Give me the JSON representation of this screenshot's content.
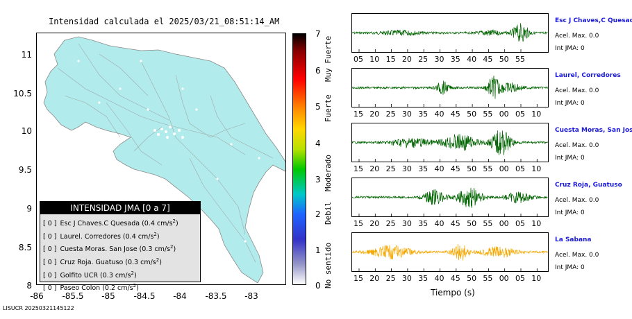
{
  "map": {
    "title": "Intensidad calculada el 2025/03/21_08:51:14_AM",
    "yticks": [
      "11",
      "10.5",
      "10",
      "9.5",
      "9",
      "8.5",
      "8"
    ],
    "xticks": [
      "-86",
      "-85.5",
      "-85",
      "-84.5",
      "-84",
      "-83.5",
      "-83"
    ],
    "xlim": [
      -86,
      -82.5
    ],
    "ylim": [
      8,
      11.3
    ],
    "land_color": "#b2ebeb"
  },
  "legend": {
    "title": "INTENSIDAD JMA [0 a 7]",
    "items": [
      {
        "prefix": "[ 0 ]",
        "text": "Esc J Chaves.C Quesada (0.4 cm/s",
        "sup": "2",
        "close": ")"
      },
      {
        "prefix": "[ 0 ]",
        "text": "Laurel. Corredores (0.4 cm/s",
        "sup": "2",
        "close": ")"
      },
      {
        "prefix": "[ 0 ]",
        "text": "Cuesta Moras. San Jose (0.3 cm/s",
        "sup": "2",
        "close": ")"
      },
      {
        "prefix": "[ 0 ]",
        "text": "Cruz Roja. Guatuso (0.3 cm/s",
        "sup": "2",
        "close": ")"
      },
      {
        "prefix": "[ 0 ]",
        "text": "Golfito UCR (0.3 cm/s",
        "sup": "2",
        "close": ")"
      },
      {
        "prefix": "[ 0 ]",
        "text": "Paseo Colon (0.2 cm/s",
        "sup": "2",
        "close": ")"
      }
    ]
  },
  "scale": {
    "ticks": [
      "7",
      "6",
      "5",
      "4",
      "3",
      "2",
      "1",
      "0"
    ],
    "labels": [
      "Muy Fuerte",
      "Fuerte",
      "Moderado",
      "Debil",
      "No sentido"
    ]
  },
  "traces": {
    "xlabel": "Tiempo (s)",
    "stations": [
      {
        "name": "Esc J Chaves,C Quesada",
        "accel": "Acel. Max. 0.0",
        "int": "Int JMA: 0",
        "color": "#006400",
        "ticks": [
          "05",
          "10",
          "15",
          "20",
          "25",
          "30",
          "35",
          "40",
          "45",
          "50",
          "55"
        ]
      },
      {
        "name": "Laurel, Corredores",
        "accel": "Acel. Max. 0.0",
        "int": "Int JMA: 0",
        "color": "#006400",
        "ticks": [
          "15",
          "20",
          "25",
          "30",
          "35",
          "40",
          "45",
          "50",
          "55",
          "00",
          "05",
          "10"
        ]
      },
      {
        "name": "Cuesta Moras, San Jose",
        "accel": "Acel. Max. 0.0",
        "int": "Int JMA: 0",
        "color": "#006400",
        "ticks": [
          "15",
          "20",
          "25",
          "30",
          "35",
          "40",
          "45",
          "50",
          "55",
          "00",
          "05",
          "10"
        ]
      },
      {
        "name": "Cruz Roja, Guatuso",
        "accel": "Acel. Max. 0.0",
        "int": "Int JMA: 0",
        "color": "#006400",
        "ticks": [
          "15",
          "20",
          "25",
          "30",
          "35",
          "40",
          "45",
          "50",
          "55",
          "00",
          "05",
          "10"
        ]
      },
      {
        "name": "La Sabana",
        "accel": "Acel. Max. 0.0",
        "int": "Int JMA: 0",
        "color": "#f5a800",
        "ticks": [
          "15",
          "20",
          "25",
          "30",
          "35",
          "40",
          "45",
          "50",
          "55",
          "00",
          "05",
          "10"
        ]
      }
    ]
  },
  "footer": "LISUCR 20250321145122",
  "chart_data": [
    {
      "type": "heatmap",
      "title": "Intensidad calculada el 2025/03/21_08:51:14_AM",
      "xlabel": "",
      "ylabel": "",
      "xlim": [
        -86,
        -82.5
      ],
      "ylim": [
        8,
        11.3
      ],
      "colorbar": {
        "min": 0,
        "max": 7,
        "categories": [
          "No sentido",
          "Debil",
          "Moderado",
          "Fuerte",
          "Muy Fuerte"
        ]
      }
    },
    {
      "type": "line",
      "xlabel": "Tiempo (s)",
      "series": [
        {
          "name": "Esc J Chaves,C Quesada",
          "peak_accel": 0.0,
          "jma": 0
        },
        {
          "name": "Laurel, Corredores",
          "peak_accel": 0.0,
          "jma": 0
        },
        {
          "name": "Cuesta Moras, San Jose",
          "peak_accel": 0.0,
          "jma": 0
        },
        {
          "name": "Cruz Roja, Guatuso",
          "peak_accel": 0.0,
          "jma": 0
        },
        {
          "name": "La Sabana",
          "peak_accel": 0.0,
          "jma": 0
        }
      ]
    }
  ]
}
